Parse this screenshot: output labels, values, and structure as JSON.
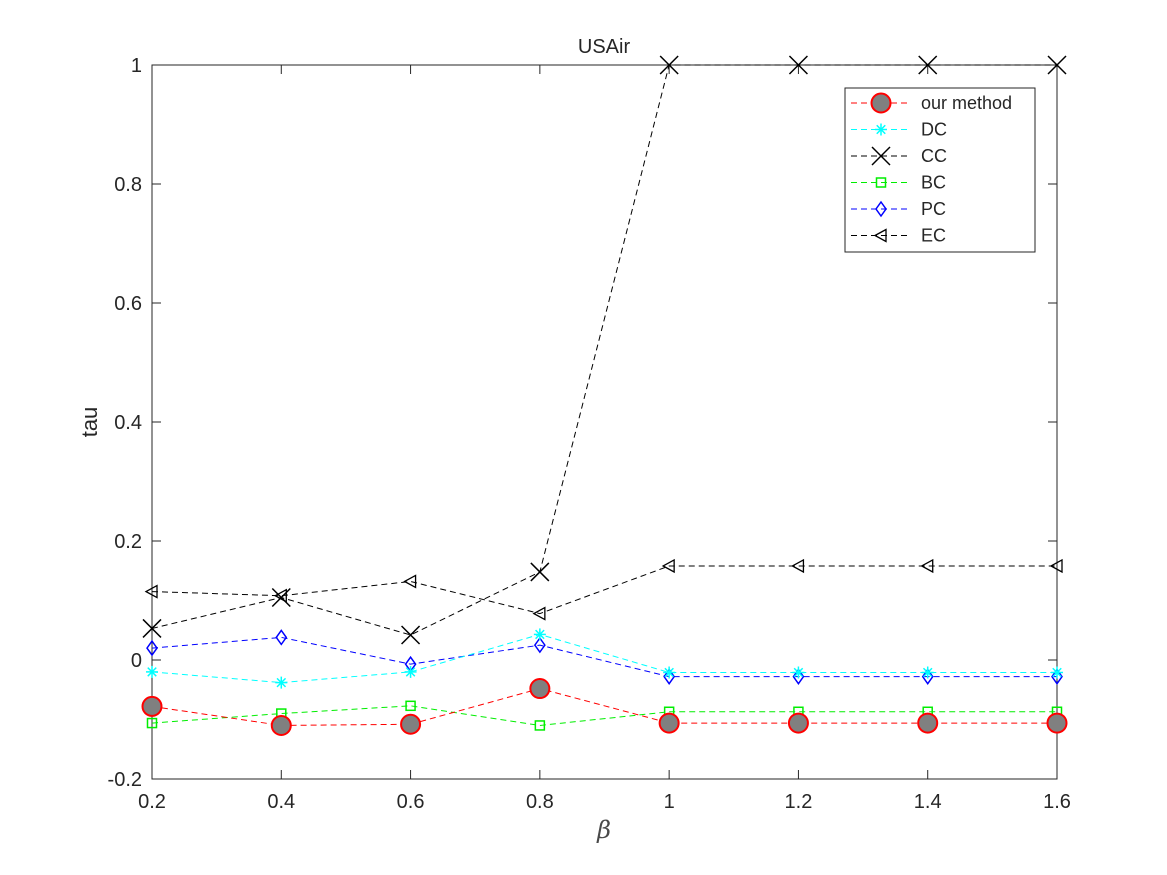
{
  "chart_data": {
    "type": "line",
    "title": "USAir",
    "xlabel": "β",
    "ylabel": "tau",
    "xlim": [
      0.2,
      1.6
    ],
    "ylim": [
      -0.2,
      1
    ],
    "x": [
      0.2,
      0.4,
      0.6,
      0.8,
      1.0,
      1.2,
      1.4,
      1.6
    ],
    "xticks": [
      "0.2",
      "0.4",
      "0.6",
      "0.8",
      "1",
      "1.2",
      "1.4",
      "1.6"
    ],
    "yticks": [
      "-0.2",
      "0",
      "0.2",
      "0.4",
      "0.6",
      "0.8",
      "1"
    ],
    "legend_position": "top-right",
    "grid": false,
    "series": [
      {
        "name": "our method",
        "color": "#ff0000",
        "fill": "#808080",
        "marker": "circle",
        "values": [
          -0.078,
          -0.11,
          -0.108,
          -0.048,
          -0.106,
          -0.106,
          -0.106,
          -0.106
        ]
      },
      {
        "name": "DC",
        "color": "#00ffff",
        "marker": "asterisk",
        "values": [
          -0.02,
          -0.038,
          -0.02,
          0.043,
          -0.021,
          -0.021,
          -0.021,
          -0.021
        ]
      },
      {
        "name": "CC",
        "color": "#000000",
        "marker": "x",
        "values": [
          0.053,
          0.105,
          0.042,
          0.148,
          1.0,
          1.0,
          1.0,
          1.0
        ]
      },
      {
        "name": "BC",
        "color": "#00ee00",
        "marker": "square",
        "values": [
          -0.106,
          -0.09,
          -0.077,
          -0.11,
          -0.087,
          -0.087,
          -0.087,
          -0.087
        ]
      },
      {
        "name": "PC",
        "color": "#0000ff",
        "marker": "diamond",
        "values": [
          0.02,
          0.038,
          -0.007,
          0.025,
          -0.028,
          -0.028,
          -0.028,
          -0.028
        ]
      },
      {
        "name": "EC",
        "color": "#000000",
        "marker": "triangle-left",
        "values": [
          0.115,
          0.108,
          0.132,
          0.078,
          0.158,
          0.158,
          0.158,
          0.158
        ]
      }
    ]
  }
}
